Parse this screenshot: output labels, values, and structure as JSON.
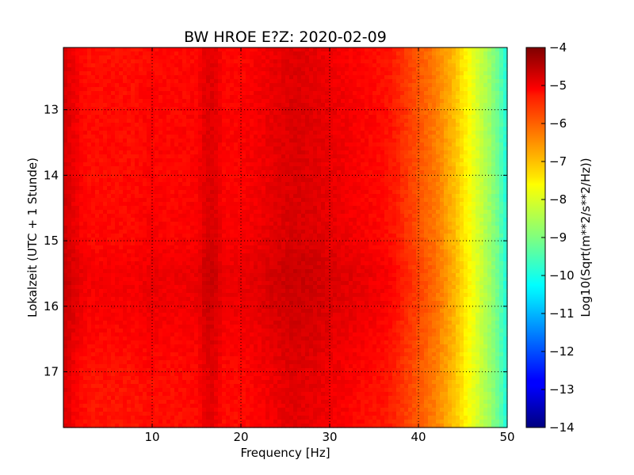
{
  "chart_data": {
    "type": "heatmap",
    "title": "BW HROE E?Z: 2020-02-09",
    "xlabel": "Frequency [Hz]",
    "ylabel": "Lokalzeit (UTC + 1 Stunde)",
    "colorbar_label": "Log10(Sqrt(m**2/s**2/Hz))",
    "colormap": "jet",
    "xlim": [
      0,
      50
    ],
    "ylim": [
      12.05,
      17.85
    ],
    "y_inverted": true,
    "clim": [
      -14,
      -4
    ],
    "grid": true,
    "x_ticks": [
      10,
      20,
      30,
      40,
      50
    ],
    "x_tick_labels": [
      "10",
      "20",
      "30",
      "40",
      "50"
    ],
    "y_ticks": [
      13,
      14,
      15,
      16,
      17
    ],
    "y_tick_labels": [
      "13",
      "14",
      "15",
      "16",
      "17"
    ],
    "colorbar_ticks": [
      -4,
      -5,
      -6,
      -7,
      -8,
      -9,
      -10,
      -11,
      -12,
      -13,
      -14
    ],
    "colorbar_tick_labels": [
      "−4",
      "−5",
      "−6",
      "−7",
      "−8",
      "−9",
      "−10",
      "−11",
      "−12",
      "−13",
      "−14"
    ],
    "frequency_profile": {
      "frequency_hz": [
        0.1,
        0.5,
        1,
        2,
        3,
        5,
        8,
        10,
        12,
        15,
        16,
        17,
        18,
        20,
        22,
        24,
        26,
        28,
        30,
        32,
        34,
        36,
        37,
        38,
        39,
        40,
        41,
        42,
        43,
        44,
        45,
        46,
        47,
        48,
        49,
        49.5,
        50
      ],
      "log10_psd": [
        -4.9,
        -5.0,
        -5.1,
        -5.3,
        -5.4,
        -5.4,
        -5.4,
        -5.3,
        -5.35,
        -5.3,
        -5.0,
        -5.0,
        -5.3,
        -5.3,
        -5.2,
        -5.05,
        -4.95,
        -5.0,
        -5.1,
        -5.2,
        -5.3,
        -5.4,
        -5.5,
        -5.7,
        -5.9,
        -6.1,
        -6.3,
        -6.5,
        -6.8,
        -7.1,
        -7.5,
        -7.9,
        -8.3,
        -8.7,
        -9.2,
        -9.6,
        -10.0
      ]
    },
    "time_modulation": {
      "local_time_h": [
        12.05,
        13.0,
        14.0,
        15.0,
        15.5,
        16.0,
        16.5,
        17.0,
        17.85
      ],
      "log10_psd_offset": [
        0.0,
        0.05,
        0.05,
        0.1,
        0.25,
        0.2,
        0.1,
        0.0,
        -0.05
      ]
    }
  }
}
